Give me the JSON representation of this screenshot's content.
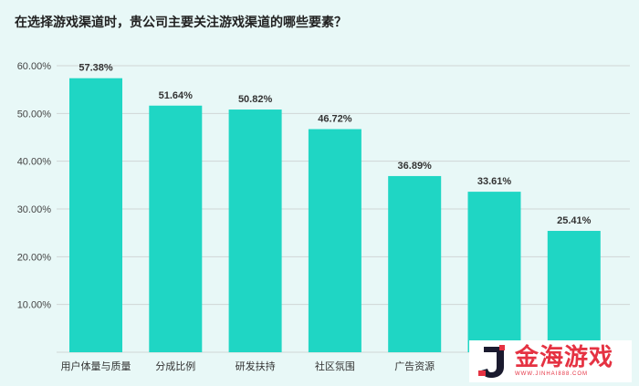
{
  "chart_data": {
    "type": "bar",
    "title": "在选择游戏渠道时，贵公司主要关注游戏渠道的哪些要素？",
    "categories": [
      "用户体量与质量",
      "分成比例",
      "研发扶持",
      "社区氛围",
      "广告资源",
      "",
      ""
    ],
    "values": [
      57.38,
      51.64,
      50.82,
      46.72,
      36.89,
      33.61,
      25.41
    ],
    "value_labels": [
      "57.38%",
      "51.64%",
      "50.82%",
      "46.72%",
      "36.89%",
      "33.61%",
      "25.41%"
    ],
    "y_ticks": [
      "10.00%",
      "20.00%",
      "30.00%",
      "40.00%",
      "50.00%",
      "60.00%"
    ],
    "y_tick_values": [
      10,
      20,
      30,
      40,
      50,
      60
    ],
    "ylim": [
      0,
      60
    ],
    "xlabel": "",
    "ylabel": "",
    "grid": true,
    "bar_color": "#1fd6c4",
    "background_color": "#e8f8f7"
  },
  "watermark": {
    "text": "金海游戏",
    "subtext": "WWW.JINHAI888.COM",
    "color": "#e53242"
  }
}
